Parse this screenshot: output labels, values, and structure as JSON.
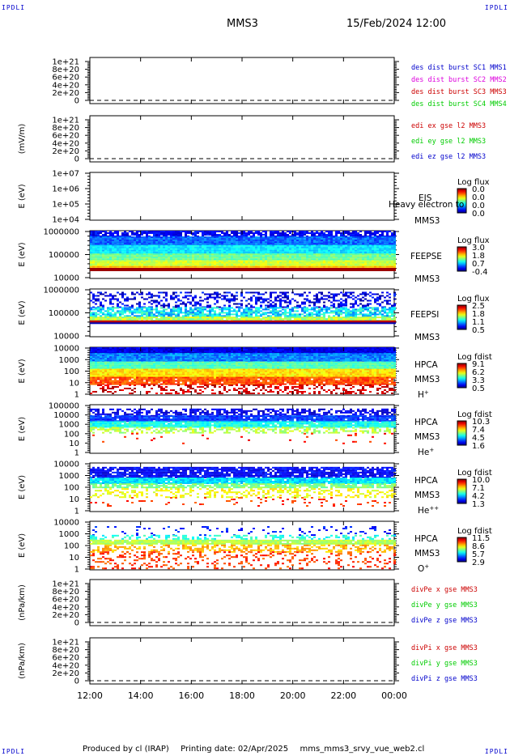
{
  "header": {
    "corner_tl": "IPDLI",
    "corner_tr": "IPDLI",
    "corner_bl": "IPDLI",
    "corner_br": "IPDLI",
    "spacecraft": "MMS3",
    "datetime": "15/Feb/2024 12:00"
  },
  "footer": {
    "produced_by": "Produced by cl (IRAP)",
    "printing_date": "Printing date: 02/Apr/2025",
    "filename": "mms_mms3_srvy_vue_web2.cl"
  },
  "colors": {
    "blue": "#0000cc",
    "magenta": "#dd00dd",
    "red": "#cc0000",
    "green": "#00cc00",
    "cb_dark_red": "#7f0000",
    "cb_dark_blue": "#00007f"
  },
  "chart_data": [
    {
      "type": "line",
      "ylabel": "",
      "yticks": [
        "1e+21",
        "8e+20",
        "6e+20",
        "4e+20",
        "2e+20",
        "0"
      ],
      "ylim": [
        0,
        1e+21
      ],
      "zero_dashed": true,
      "legend": [
        {
          "text": "des dist burst SC1 MMS1",
          "color": "#0000cc"
        },
        {
          "text": "des dist burst SC2 MMS2",
          "color": "#dd00dd"
        },
        {
          "text": "des dist burst SC3 MMS3",
          "color": "#cc0000"
        },
        {
          "text": "des dist burst SC4 MMS4",
          "color": "#00cc00"
        }
      ]
    },
    {
      "type": "line",
      "ylabel": "(mV/m)",
      "yticks": [
        "1e+21",
        "8e+20",
        "6e+20",
        "4e+20",
        "2e+20",
        "0"
      ],
      "ylim": [
        0,
        1e+21
      ],
      "zero_dashed": true,
      "legend": [
        {
          "text": "edi ex gse l2 MMS3",
          "color": "#cc0000"
        },
        {
          "text": "edi ey gse l2 MMS3",
          "color": "#00cc00"
        },
        {
          "text": "edi ez gse l2 MMS3",
          "color": "#0000cc"
        }
      ]
    },
    {
      "type": "heatmap",
      "ylabel": "E (eV)",
      "yticks": [
        "1e+07",
        "1e+06",
        "1e+05",
        "1e+04"
      ],
      "ylim": [
        10000,
        10000000
      ],
      "instrument": "EIS",
      "overlay": "Heavy electron to",
      "sc": "MMS3",
      "cb_title": "Log flux",
      "cb_ticks": [
        "0.0",
        "0.0",
        "0.0",
        "0.0"
      ],
      "spectrum": "none"
    },
    {
      "type": "heatmap",
      "ylabel": "E (eV)",
      "yticks": [
        "1000000",
        "100000",
        "10000"
      ],
      "ylim": [
        10000,
        1000000
      ],
      "instrument": "FEEPSE",
      "sc": "MMS3",
      "cb_title": "Log flux",
      "cb_ticks": [
        "3.0",
        "1.8",
        "0.7",
        "-0.4"
      ],
      "spectrum": "feeps_e"
    },
    {
      "type": "heatmap",
      "ylabel": "E (eV)",
      "yticks": [
        "1000000",
        "100000",
        "10000"
      ],
      "ylim": [
        10000,
        1000000
      ],
      "instrument": "FEEPSI",
      "sc": "MMS3",
      "cb_title": "Log flux",
      "cb_ticks": [
        "2.5",
        "1.8",
        "1.1",
        "0.5"
      ],
      "spectrum": "feeps_i"
    },
    {
      "type": "heatmap",
      "ylabel": "E (eV)",
      "yticks": [
        "10000",
        "1000",
        "100",
        "10",
        "1"
      ],
      "ylim": [
        1,
        40000
      ],
      "instrument": "HPCA",
      "sc": "MMS3",
      "species": "H",
      "species_sup": "+",
      "cb_title": "Log fdist",
      "cb_ticks": [
        "9.1",
        "6.2",
        "3.3",
        "0.5"
      ],
      "spectrum": "hpca_h"
    },
    {
      "type": "heatmap",
      "ylabel": "E (eV)",
      "yticks": [
        "100000",
        "10000",
        "1000",
        "100",
        "10",
        "1"
      ],
      "ylim": [
        1,
        100000
      ],
      "instrument": "HPCA",
      "sc": "MMS3",
      "species": "He",
      "species_sup": "+",
      "cb_title": "Log fdist",
      "cb_ticks": [
        "10.3",
        "7.4",
        "4.5",
        "1.6"
      ],
      "spectrum": "hpca_he"
    },
    {
      "type": "heatmap",
      "ylabel": "E (eV)",
      "yticks": [
        "10000",
        "1000",
        "100",
        "10",
        "1"
      ],
      "ylim": [
        1,
        40000
      ],
      "instrument": "HPCA",
      "sc": "MMS3",
      "species": "He",
      "species_sup": "++",
      "cb_title": "Log fdist",
      "cb_ticks": [
        "10.0",
        "7.1",
        "4.2",
        "1.3"
      ],
      "spectrum": "hpca_hepp"
    },
    {
      "type": "heatmap",
      "ylabel": "E (eV)",
      "yticks": [
        "10000",
        "1000",
        "100",
        "10",
        "1"
      ],
      "ylim": [
        1,
        40000
      ],
      "instrument": "HPCA",
      "sc": "MMS3",
      "species": "O",
      "species_sup": "+",
      "cb_title": "Log fdist",
      "cb_ticks": [
        "11.5",
        "8.6",
        "5.7",
        "2.9"
      ],
      "spectrum": "hpca_o"
    },
    {
      "type": "line",
      "ylabel": "(nPa/km)",
      "yticks": [
        "1e+21",
        "8e+20",
        "6e+20",
        "4e+20",
        "2e+20",
        "0"
      ],
      "ylim": [
        0,
        1e+21
      ],
      "zero_dashed": true,
      "legend": [
        {
          "text": "divPe x gse MMS3",
          "color": "#cc0000"
        },
        {
          "text": "divPe y gse MMS3",
          "color": "#00cc00"
        },
        {
          "text": "divPe z gse MMS3",
          "color": "#0000cc"
        }
      ]
    },
    {
      "type": "line",
      "ylabel": "(nPa/km)",
      "yticks": [
        "1e+21",
        "8e+20",
        "6e+20",
        "4e+20",
        "2e+20",
        "0"
      ],
      "ylim": [
        0,
        1e+21
      ],
      "zero_dashed": true,
      "legend": [
        {
          "text": "divPi x gse MMS3",
          "color": "#cc0000"
        },
        {
          "text": "divPi y gse MMS3",
          "color": "#00cc00"
        },
        {
          "text": "divPi z gse MMS3",
          "color": "#0000cc"
        }
      ]
    }
  ],
  "xaxis": {
    "ticks": [
      "12:00",
      "14:00",
      "16:00",
      "18:00",
      "20:00",
      "22:00",
      "00:00"
    ],
    "xlim": [
      "2024-02-15T12:00",
      "2024-02-16T00:00"
    ]
  }
}
